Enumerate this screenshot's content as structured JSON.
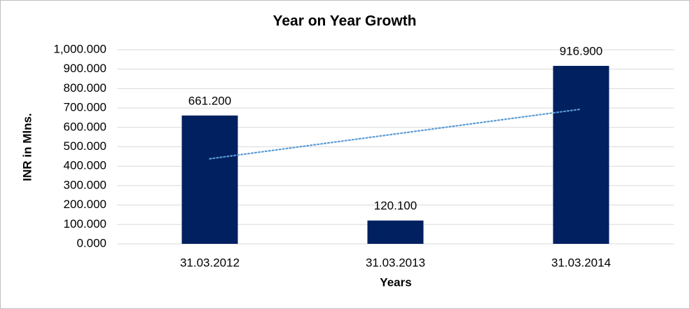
{
  "chart_data": {
    "type": "bar",
    "title": "Year on Year Growth",
    "x_label": "Years",
    "y_label": "INR in Mlns.",
    "categories": [
      "31.03.2012",
      "31.03.2013",
      "31.03.2014"
    ],
    "values": [
      661.2,
      120.1,
      916.9
    ],
    "value_labels": [
      "661.200",
      "120.100",
      "916.900"
    ],
    "color": "#002060",
    "ylim": [
      0,
      1000
    ],
    "yticks": [
      {
        "value": 0,
        "label": "0.000"
      },
      {
        "value": 100,
        "label": "100.000"
      },
      {
        "value": 200,
        "label": "200.000"
      },
      {
        "value": 300,
        "label": "300.000"
      },
      {
        "value": 400,
        "label": "400.000"
      },
      {
        "value": 500,
        "label": "500.000"
      },
      {
        "value": 600,
        "label": "600.000"
      },
      {
        "value": 700,
        "label": "700.000"
      },
      {
        "value": 800,
        "label": "800.000"
      },
      {
        "value": 900,
        "label": "900.000"
      },
      {
        "value": 1000,
        "label": "1,000.000"
      }
    ],
    "grid": true,
    "trendline": {
      "type": "linear",
      "color": "#5b9bd5"
    }
  }
}
